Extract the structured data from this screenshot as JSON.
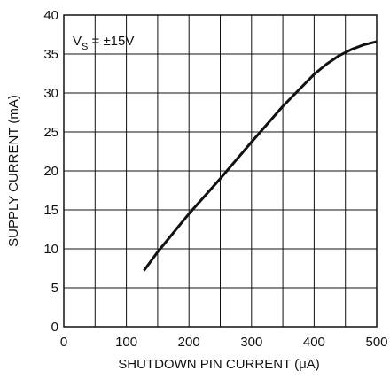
{
  "chart_data": {
    "type": "line",
    "title": "",
    "xlabel": "SHUTDOWN PIN CURRENT (μA)",
    "ylabel": "SUPPLY CURRENT (mA)",
    "xlim": [
      0,
      500
    ],
    "ylim": [
      0,
      40
    ],
    "x_ticks": [
      0,
      100,
      200,
      300,
      400,
      500
    ],
    "y_ticks": [
      0,
      5,
      10,
      15,
      20,
      25,
      30,
      35,
      40
    ],
    "x_ticklabels": [
      "0",
      "100",
      "200",
      "300",
      "400",
      "500"
    ],
    "y_ticklabels": [
      "0",
      "5",
      "10",
      "15",
      "20",
      "25",
      "30",
      "35",
      "40"
    ],
    "grid": true,
    "minor_x_step": 50,
    "annotation": {
      "main": "V",
      "sub": "S",
      "rest": " = ±15V"
    },
    "series": [
      {
        "color": "#111111",
        "x": [
          128,
          150,
          200,
          250,
          300,
          350,
          400,
          420,
          440,
          460,
          480,
          500
        ],
        "y": [
          7.2,
          9.6,
          14.5,
          19.0,
          23.7,
          28.3,
          32.4,
          33.7,
          34.8,
          35.6,
          36.2,
          36.6
        ]
      }
    ]
  }
}
